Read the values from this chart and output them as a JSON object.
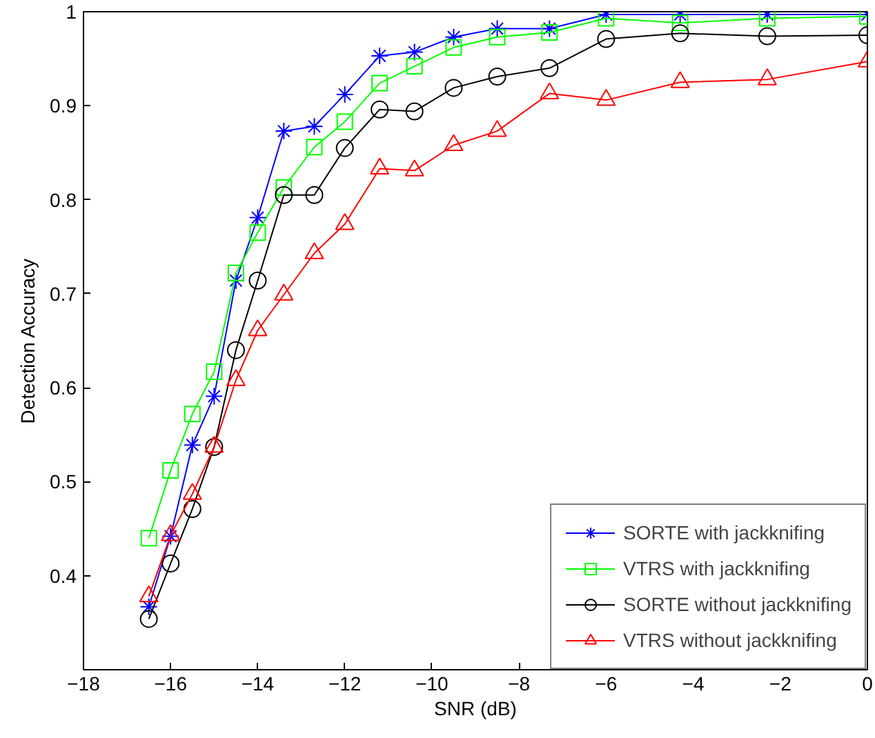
{
  "chart_data": {
    "type": "line",
    "xlabel": "SNR (dB)",
    "ylabel": "Detection Accuracy",
    "x": [
      -16.5,
      -16.0,
      -15.5,
      -15.0,
      -14.5,
      -14.0,
      -13.4,
      -12.7,
      -12.0,
      -11.2,
      -10.4,
      -9.5,
      -8.5,
      -7.3,
      -6.0,
      -4.3,
      -2.3,
      0
    ],
    "xlim": [
      -18,
      0
    ],
    "xticks": [
      {
        "value": -18,
        "label": "−18"
      },
      {
        "value": -16,
        "label": "−16"
      },
      {
        "value": -14,
        "label": "−14"
      },
      {
        "value": -12,
        "label": "−12"
      },
      {
        "value": -10,
        "label": "−10"
      },
      {
        "value": -8,
        "label": "−8"
      },
      {
        "value": -6,
        "label": "−6"
      },
      {
        "value": -4,
        "label": "−4"
      },
      {
        "value": -2,
        "label": "−2"
      },
      0
    ],
    "ylim": [
      0.3,
      1
    ],
    "yticks": [
      0.4,
      0.5,
      0.6,
      0.7,
      0.8,
      0.9,
      1
    ],
    "grid": false,
    "legend": "bottom right",
    "line_style": "solid",
    "series": [
      {
        "name": "SORTE with jackknifing",
        "color": "#0000ff",
        "marker": "cross",
        "values": [
          0.367,
          0.442,
          0.539,
          0.591,
          0.714,
          0.781,
          0.873,
          0.878,
          0.912,
          0.953,
          0.957,
          0.973,
          0.982,
          0.982,
          0.997,
          0.997,
          0.997,
          0.997
        ]
      },
      {
        "name": "VTRS with jackknifing",
        "color": "#00ff00",
        "marker": "square",
        "values": [
          0.44,
          0.512,
          0.572,
          0.617,
          0.722,
          0.765,
          0.813,
          0.856,
          0.883,
          0.924,
          0.942,
          0.962,
          0.973,
          0.978,
          0.993,
          0.988,
          0.993,
          0.995
        ]
      },
      {
        "name": "SORTE without jackknifing",
        "color": "#000000",
        "marker": "circle",
        "values": [
          0.354,
          0.413,
          0.471,
          0.537,
          0.64,
          0.714,
          0.805,
          0.805,
          0.855,
          0.896,
          0.894,
          0.919,
          0.931,
          0.94,
          0.971,
          0.977,
          0.974,
          0.975
        ]
      },
      {
        "name": "VTRS without jackknifing",
        "color": "#ff0000",
        "marker": "triangle",
        "values": [
          0.378,
          0.443,
          0.487,
          0.537,
          0.608,
          0.661,
          0.699,
          0.743,
          0.774,
          0.833,
          0.831,
          0.858,
          0.873,
          0.913,
          0.906,
          0.925,
          0.928,
          0.947
        ]
      }
    ]
  }
}
